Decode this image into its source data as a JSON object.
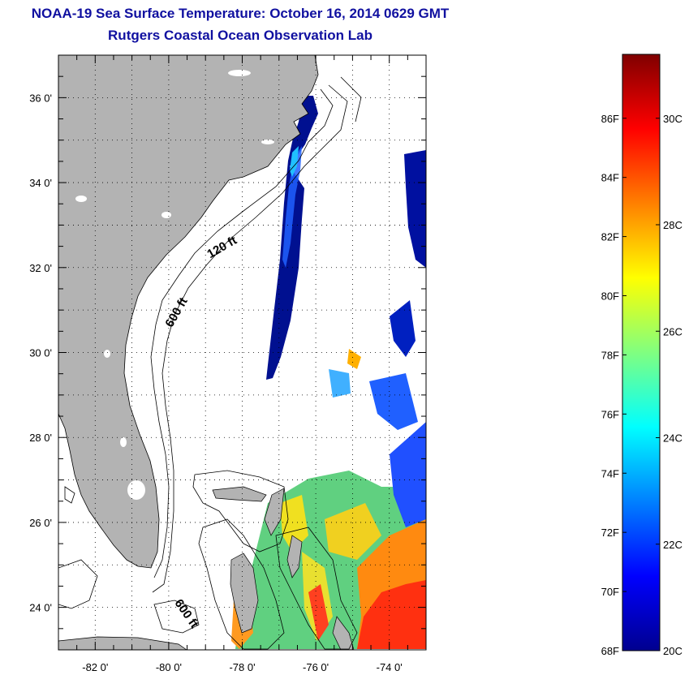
{
  "header": {
    "title": "NOAA-19 Sea Surface Temperature:  October 16, 2014 0629 GMT",
    "subtitle": "Rutgers Coastal Ocean Observation Lab"
  },
  "map": {
    "lon_range": [
      -83,
      -73
    ],
    "lat_range": [
      23,
      37
    ],
    "lat_ticks": [
      {
        "value": 36,
        "label": "36 0'"
      },
      {
        "value": 34,
        "label": "34 0'"
      },
      {
        "value": 32,
        "label": "32 0'"
      },
      {
        "value": 30,
        "label": "30 0'"
      },
      {
        "value": 28,
        "label": "28 0'"
      },
      {
        "value": 26,
        "label": "26 0'"
      },
      {
        "value": 24,
        "label": "24 0'"
      }
    ],
    "lon_ticks": [
      {
        "value": -82,
        "label": "-82 0'"
      },
      {
        "value": -80,
        "label": "-80 0'"
      },
      {
        "value": -78,
        "label": "-78 0'"
      },
      {
        "value": -76,
        "label": "-76 0'"
      },
      {
        "value": -74,
        "label": "-74 0'"
      }
    ],
    "contour_labels": [
      {
        "text": "120 ft",
        "lon": -78.5,
        "lat": 32.4,
        "rotate": -30
      },
      {
        "text": "600 ft",
        "lon": -79.7,
        "lat": 30.9,
        "rotate": -60
      },
      {
        "text": "600 ft",
        "lon": -79.6,
        "lat": 23.8,
        "rotate": 55
      }
    ],
    "colors": {
      "land": "#b3b3b3",
      "ocean": "#ffffff",
      "coast": "#000000"
    }
  },
  "colorbar": {
    "fahrenheit_labels": [
      "86F",
      "84F",
      "82F",
      "80F",
      "78F",
      "76F",
      "74F",
      "72F",
      "70F",
      "68F"
    ],
    "celsius_labels": [
      "30C",
      "28C",
      "26C",
      "24C",
      "22C",
      "20C"
    ],
    "range_c": [
      20,
      31.2
    ],
    "stops": [
      "#00008f",
      "#0000ff",
      "#0080ff",
      "#00ffff",
      "#80ff80",
      "#ffff00",
      "#ff8000",
      "#ff0000",
      "#800000"
    ]
  }
}
